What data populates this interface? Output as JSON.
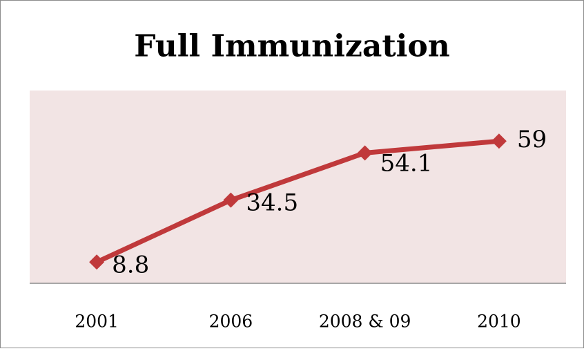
{
  "chart_data": {
    "type": "line",
    "title": "Full Immunization",
    "categories": [
      "2001",
      "2006",
      "2008 & 09",
      "2010"
    ],
    "series": [
      {
        "name": "Full Immunization",
        "color": "#c0393b",
        "values": [
          8.8,
          34.5,
          54.1,
          59
        ]
      }
    ],
    "ylim": [
      0,
      80
    ]
  }
}
